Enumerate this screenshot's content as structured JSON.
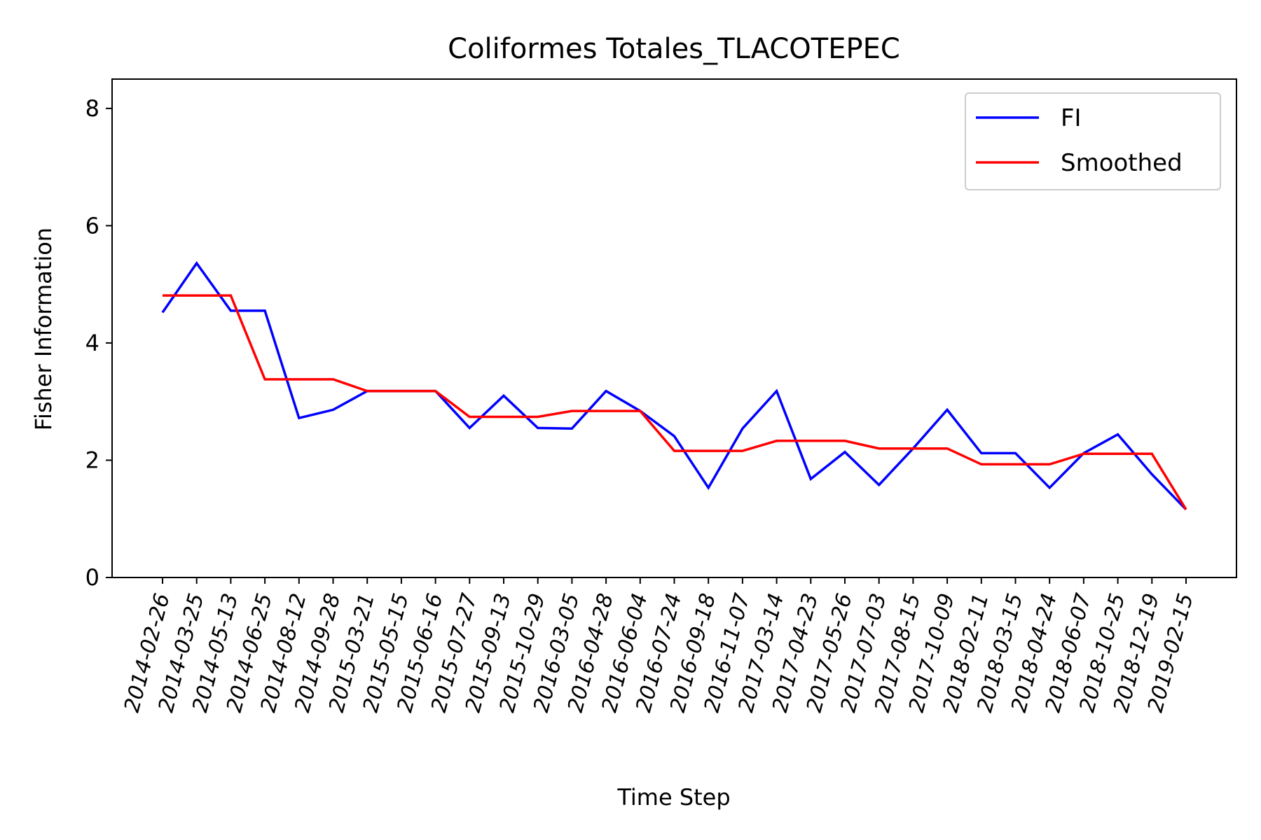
{
  "chart_data": {
    "type": "line",
    "title": "Coliformes Totales_TLACOTEPEC",
    "xlabel": "Time Step",
    "ylabel": "Fisher Information",
    "ylim": [
      0,
      8.5
    ],
    "yticks": [
      "0",
      "2",
      "4",
      "6",
      "8"
    ],
    "ytick_values": [
      0,
      2,
      4,
      6,
      8
    ],
    "grid": false,
    "legend_position": "top-right",
    "categories": [
      "2014-02-26",
      "2014-03-25",
      "2014-05-13",
      "2014-06-25",
      "2014-08-12",
      "2014-09-28",
      "2015-03-21",
      "2015-05-15",
      "2015-06-16",
      "2015-07-27",
      "2015-09-13",
      "2015-10-29",
      "2016-03-05",
      "2016-04-28",
      "2016-06-04",
      "2016-07-24",
      "2016-09-18",
      "2016-11-07",
      "2017-03-14",
      "2017-04-23",
      "2017-05-26",
      "2017-07-03",
      "2017-08-15",
      "2017-10-09",
      "2018-02-11",
      "2018-03-15",
      "2018-04-24",
      "2018-06-07",
      "2018-10-25",
      "2018-12-19",
      "2019-02-15"
    ],
    "series": [
      {
        "name": "FI",
        "color": "#0000ff",
        "values": [
          4.52,
          5.36,
          4.55,
          4.55,
          2.72,
          2.86,
          3.18,
          3.18,
          3.18,
          2.55,
          3.1,
          2.55,
          2.54,
          3.18,
          2.84,
          2.41,
          1.53,
          2.54,
          3.18,
          1.68,
          2.14,
          1.58,
          2.2,
          2.86,
          2.12,
          2.12,
          1.53,
          2.12,
          2.44,
          1.76,
          1.16
        ]
      },
      {
        "name": "Smoothed",
        "color": "#ff0000",
        "values": [
          4.81,
          4.81,
          4.81,
          3.38,
          3.38,
          3.38,
          3.18,
          3.18,
          3.18,
          2.74,
          2.74,
          2.74,
          2.84,
          2.84,
          2.84,
          2.16,
          2.16,
          2.16,
          2.33,
          2.33,
          2.33,
          2.2,
          2.2,
          2.2,
          1.93,
          1.93,
          1.93,
          2.11,
          2.11,
          2.11,
          1.16
        ]
      }
    ]
  }
}
